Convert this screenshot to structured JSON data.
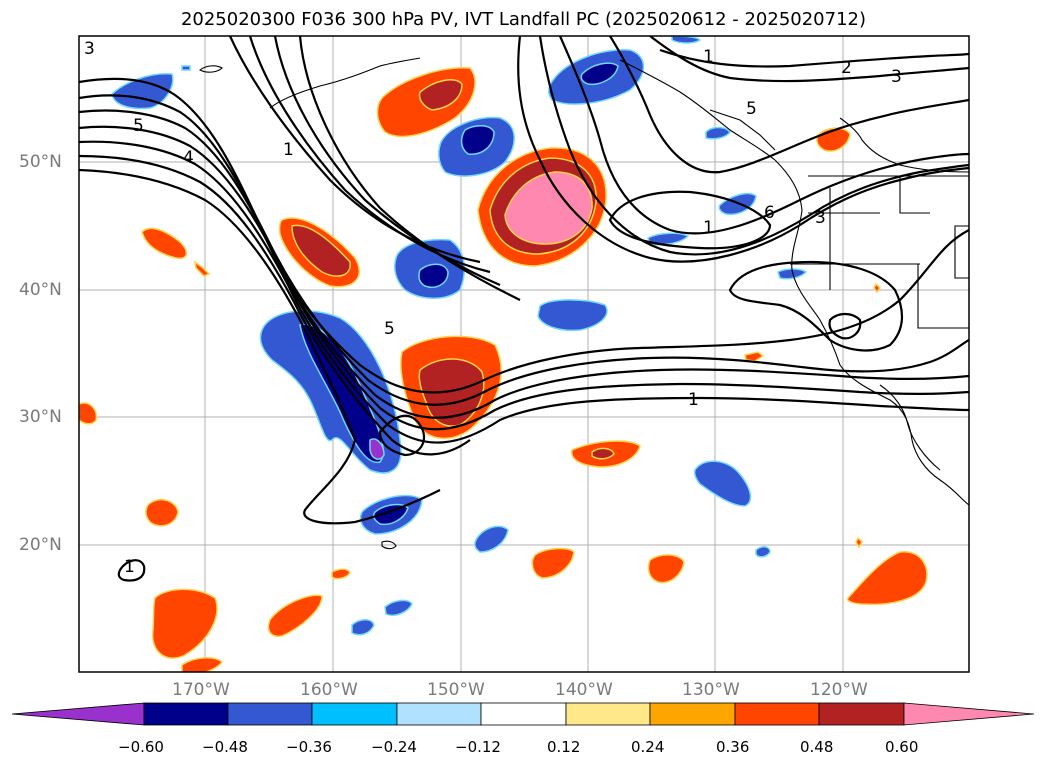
{
  "title": "2025020300 F036 300 hPa PV, IVT Landfall PC (2025020612 - 2025020712)",
  "map": {
    "lon_labels": [
      "170°W",
      "160°W",
      "150°W",
      "140°W",
      "130°W",
      "120°W"
    ],
    "lat_labels": [
      "50°N",
      "40°N",
      "30°N",
      "20°N"
    ],
    "contour_labels": [
      "3",
      "5",
      "4",
      "1",
      "5",
      "1",
      "2",
      "3",
      "5",
      "6",
      "3",
      "1",
      "1",
      "1"
    ],
    "gridline_color": "#b0b0b0",
    "coast_color": "#000000"
  },
  "colorbar": {
    "ticks": [
      "−0.60",
      "−0.48",
      "−0.36",
      "−0.24",
      "−0.12",
      "0.12",
      "0.24",
      "0.36",
      "0.48",
      "0.60"
    ],
    "colors": [
      "#9932cc",
      "#00008b",
      "#3358d2",
      "#00bfff",
      "#b0e2ff",
      "#ffffff",
      "#ffe88a",
      "#ffa500",
      "#ff4500",
      "#b22222",
      "#ff88b0"
    ]
  }
}
